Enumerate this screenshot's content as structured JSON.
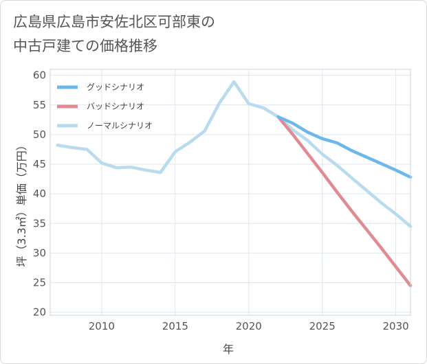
{
  "title_line1": "広島県広島市安佐北区可部東の",
  "title_line2": "中古戸建ての価格推移",
  "chart_data": {
    "type": "line",
    "xlabel": "年",
    "ylabel": "坪（3.3㎡）単価（万円）",
    "xlim": [
      2006.5,
      2031
    ],
    "ylim": [
      19.5,
      61
    ],
    "x_ticks": [
      2010,
      2015,
      2020,
      2025,
      2030
    ],
    "y_ticks": [
      20,
      25,
      30,
      35,
      40,
      45,
      50,
      55,
      60
    ],
    "grid": true,
    "legend_position": "top-left",
    "series": [
      {
        "name": "グッドシナリオ",
        "color": "#6bb8ee",
        "x": [
          2022,
          2023,
          2024,
          2025,
          2026,
          2027,
          2028,
          2029,
          2030,
          2031
        ],
        "values": [
          53.0,
          51.9,
          50.4,
          49.3,
          48.6,
          47.3,
          46.2,
          45.1,
          44.0,
          42.8
        ]
      },
      {
        "name": "バッドシナリオ",
        "color": "#e08a94",
        "x": [
          2022,
          2023,
          2024,
          2025,
          2026,
          2027,
          2028,
          2029,
          2030,
          2031
        ],
        "values": [
          53.0,
          50.0,
          46.8,
          43.6,
          40.3,
          37.1,
          34.0,
          30.9,
          27.7,
          24.5
        ]
      },
      {
        "name": "ノーマルシナリオ",
        "color": "#b8dcee",
        "x": [
          2007,
          2008,
          2009,
          2010,
          2011,
          2012,
          2013,
          2014,
          2015,
          2016,
          2017,
          2018,
          2019,
          2020,
          2021,
          2022,
          2023,
          2024,
          2025,
          2026,
          2027,
          2028,
          2029,
          2030,
          2031
        ],
        "values": [
          48.2,
          47.8,
          47.5,
          45.2,
          44.4,
          44.5,
          44.0,
          43.6,
          47.1,
          48.7,
          50.6,
          55.3,
          58.9,
          55.2,
          54.5,
          53.0,
          50.8,
          49.0,
          46.7,
          44.8,
          42.7,
          40.6,
          38.5,
          36.6,
          34.5
        ]
      }
    ]
  }
}
